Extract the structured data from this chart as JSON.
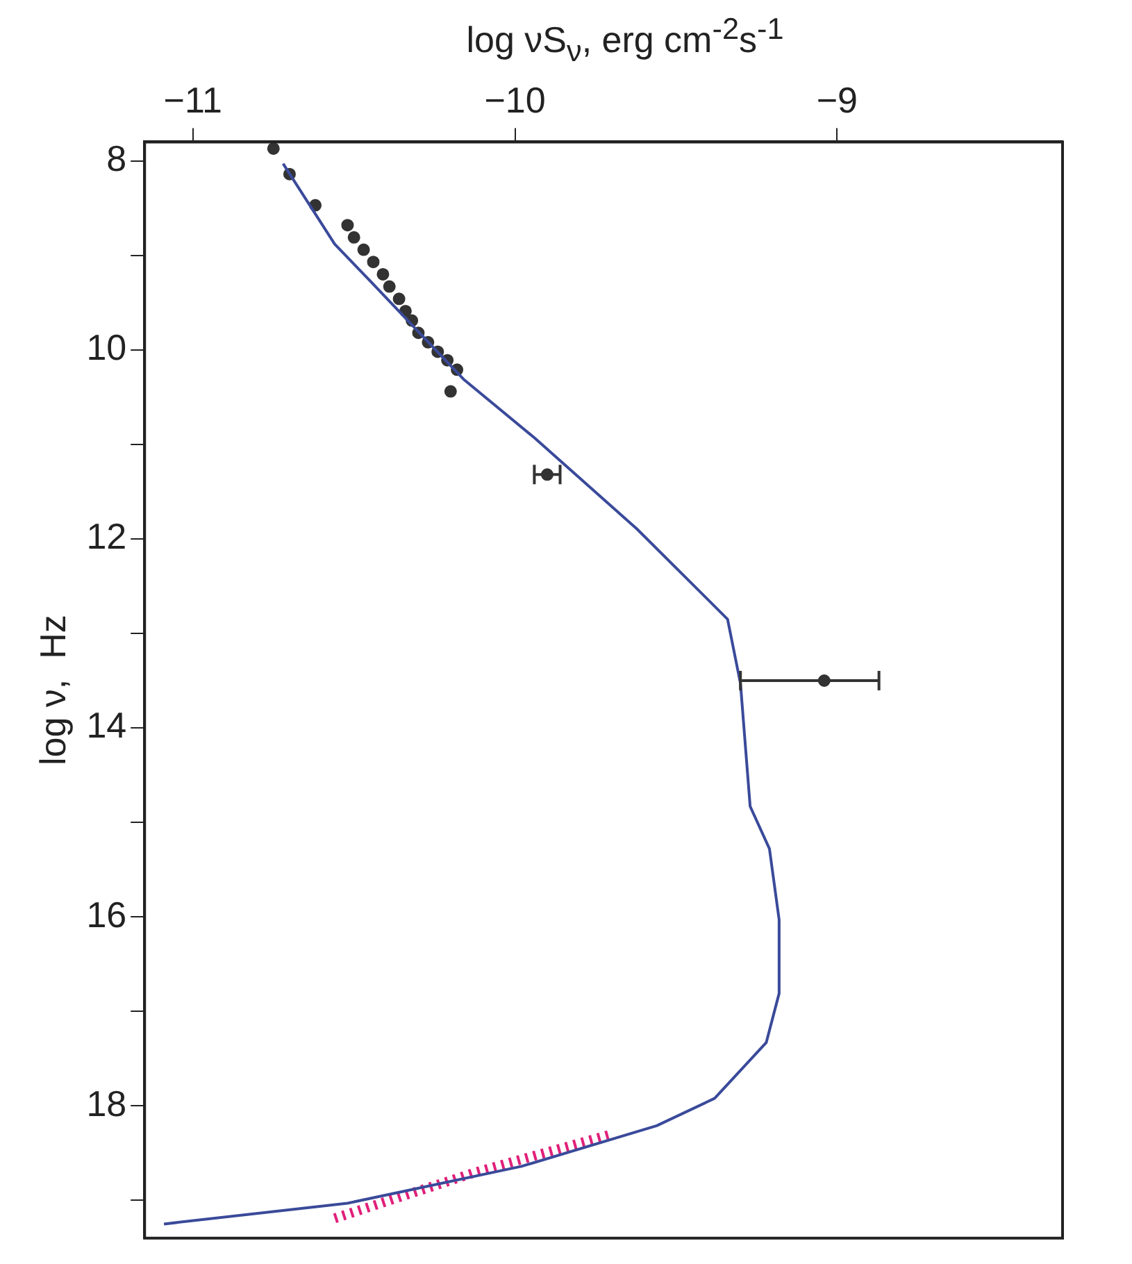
{
  "chart_data": {
    "type": "scatter",
    "xlabel": "log νS$_{ν}$, erg cm$^{-2}$s$^{-1}$",
    "ylabel": "log ν,  Hz",
    "xlim": [
      -11.15,
      -8.3
    ],
    "ylim": [
      19.4,
      7.8
    ],
    "xticks": [
      -11,
      -10,
      -9
    ],
    "yticks": [
      8,
      {
        "value": 9,
        "label": null
      },
      10,
      {
        "value": 11,
        "label": null
      },
      12,
      {
        "value": 13,
        "label": null
      },
      14,
      {
        "value": 15,
        "label": null
      },
      16,
      {
        "value": 17,
        "label": null
      },
      18,
      {
        "value": 19,
        "label": null
      }
    ],
    "grid": false,
    "series": [
      {
        "type": "line",
        "color": "#3a4a9a",
        "marker": "none",
        "line_style": "solid",
        "x": [
          -10.72,
          -10.56,
          -10.45,
          -10.16,
          -9.94,
          -9.62,
          -9.34,
          -9.3,
          -9.27,
          -9.21,
          -9.18,
          -9.18,
          -9.22,
          -9.38,
          -9.56,
          -9.98,
          -10.52,
          -11.09
        ],
        "values": [
          8.03,
          8.88,
          9.27,
          10.31,
          10.93,
          11.9,
          12.85,
          13.53,
          14.83,
          15.28,
          16.03,
          16.81,
          17.33,
          17.92,
          18.21,
          18.64,
          19.03,
          19.25
        ]
      },
      {
        "type": "line",
        "color": "#e0207a",
        "marker": "none",
        "line_style": "dotted",
        "x": [
          -10.56,
          -10.12,
          -9.71
        ],
        "values": [
          19.19,
          18.7,
          18.31
        ]
      },
      {
        "color": "#333333",
        "marker": "circle",
        "x": [
          -10.75,
          -10.7,
          -10.62,
          -10.52,
          -10.5,
          -10.47,
          -10.44,
          -10.41,
          -10.39,
          -10.36,
          -10.34,
          -10.32,
          -10.3,
          -10.27,
          -10.24,
          -10.21,
          -10.18,
          -10.2,
          -9.9,
          -9.04
        ],
        "values": [
          7.87,
          8.14,
          8.47,
          8.68,
          8.81,
          8.94,
          9.07,
          9.2,
          9.33,
          9.46,
          9.59,
          9.69,
          9.82,
          9.92,
          10.02,
          10.11,
          10.21,
          10.44,
          11.32,
          13.5
        ],
        "xerrors": [
          null,
          null,
          null,
          null,
          null,
          null,
          null,
          null,
          null,
          null,
          null,
          null,
          null,
          null,
          null,
          null,
          null,
          null,
          [
            -9.94,
            -9.86
          ],
          [
            -9.3,
            -8.87
          ]
        ]
      }
    ]
  }
}
